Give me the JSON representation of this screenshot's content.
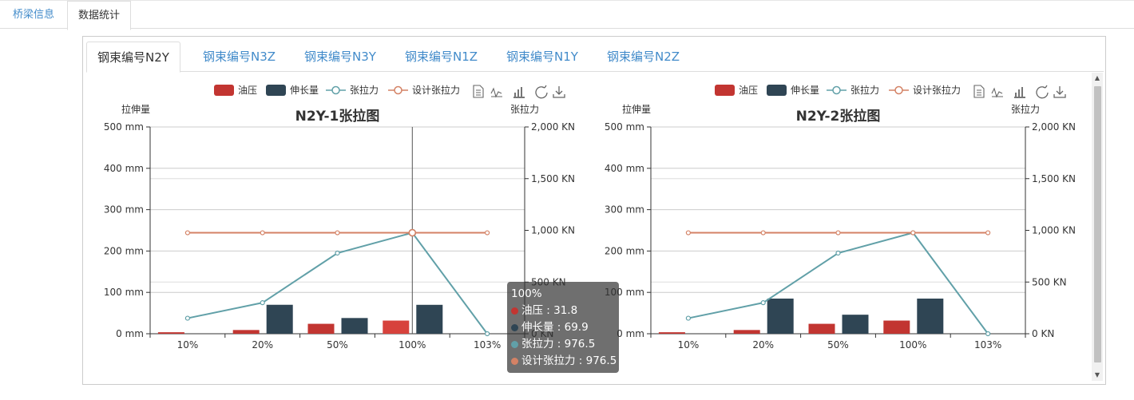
{
  "top_tabs": [
    {
      "label": "桥梁信息",
      "active": false
    },
    {
      "label": "数据统计",
      "active": true
    }
  ],
  "inner_tabs": [
    {
      "label": "钢束编号N2Y",
      "active": true
    },
    {
      "label": "钢束编号N3Z",
      "active": false
    },
    {
      "label": "钢束编号N3Y",
      "active": false
    },
    {
      "label": "钢束编号N1Z",
      "active": false
    },
    {
      "label": "钢束编号N1Y",
      "active": false
    },
    {
      "label": "钢束编号N2Z",
      "active": false
    }
  ],
  "toolbox_icons": [
    "data-view-icon",
    "line-chart-icon",
    "bar-chart-icon",
    "restore-icon",
    "download-icon"
  ],
  "colors": {
    "oil": "#c23531",
    "elong": "#2f4554",
    "tension": "#61a0a8",
    "design": "#d48265",
    "link": "#428bca"
  },
  "tooltip": {
    "title": "100%",
    "rows": [
      {
        "label": "油压 : 31.8",
        "color": "#c23531"
      },
      {
        "label": "伸长量 : 69.9",
        "color": "#2f4554"
      },
      {
        "label": "张拉力 : 976.5",
        "color": "#61a0a8"
      },
      {
        "label": "设计张拉力 : 976.5",
        "color": "#d48265"
      }
    ]
  },
  "chart_data": [
    {
      "type": "bar",
      "title": "N2Y-1张拉图",
      "categories": [
        "10%",
        "20%",
        "50%",
        "100%",
        "103%"
      ],
      "ylabel_left": "拉伸量",
      "ylabel_right": "张拉力",
      "y_left_ticks": [
        "0 mm",
        "100 mm",
        "200 mm",
        "300 mm",
        "400 mm",
        "500 mm"
      ],
      "y_right_ticks": [
        "0 KN",
        "500 KN",
        "1,000 KN",
        "1,500 KN",
        "2,000 KN"
      ],
      "ylim_left": [
        0,
        500
      ],
      "ylim_right": [
        0,
        2000
      ],
      "legend": [
        "油压",
        "伸长量",
        "张拉力",
        "设计张拉力"
      ],
      "series": [
        {
          "name": "油压",
          "type": "bar",
          "axis": "left",
          "values": [
            3.6,
            9,
            24,
            31.8,
            null
          ]
        },
        {
          "name": "伸长量",
          "type": "bar",
          "axis": "left",
          "values": [
            null,
            70,
            38,
            69.9,
            null
          ]
        },
        {
          "name": "张拉力",
          "type": "line",
          "axis": "right",
          "values": [
            150,
            300,
            780,
            976.5,
            0
          ]
        },
        {
          "name": "设计张拉力",
          "type": "line",
          "axis": "right",
          "values": [
            976.5,
            976.5,
            976.5,
            976.5,
            976.5
          ]
        }
      ]
    },
    {
      "type": "bar",
      "title": "N2Y-2张拉图",
      "categories": [
        "10%",
        "20%",
        "50%",
        "100%",
        "103%"
      ],
      "ylabel_left": "拉伸量",
      "ylabel_right": "张拉力",
      "y_left_ticks": [
        "0 mm",
        "100 mm",
        "200 mm",
        "300 mm",
        "400 mm",
        "500 mm"
      ],
      "y_right_ticks": [
        "0 KN",
        "500 KN",
        "1,000 KN",
        "1,500 KN",
        "2,000 KN"
      ],
      "ylim_left": [
        0,
        500
      ],
      "ylim_right": [
        0,
        2000
      ],
      "legend": [
        "油压",
        "伸长量",
        "张拉力",
        "设计张拉力"
      ],
      "series": [
        {
          "name": "油压",
          "type": "bar",
          "axis": "left",
          "values": [
            3.6,
            9,
            24,
            31.8,
            null
          ]
        },
        {
          "name": "伸长量",
          "type": "bar",
          "axis": "left",
          "values": [
            null,
            85,
            46,
            85,
            null
          ]
        },
        {
          "name": "张拉力",
          "type": "line",
          "axis": "right",
          "values": [
            150,
            300,
            780,
            976.5,
            0
          ]
        },
        {
          "name": "设计张拉力",
          "type": "line",
          "axis": "right",
          "values": [
            976.5,
            976.5,
            976.5,
            976.5,
            976.5
          ]
        }
      ]
    }
  ]
}
